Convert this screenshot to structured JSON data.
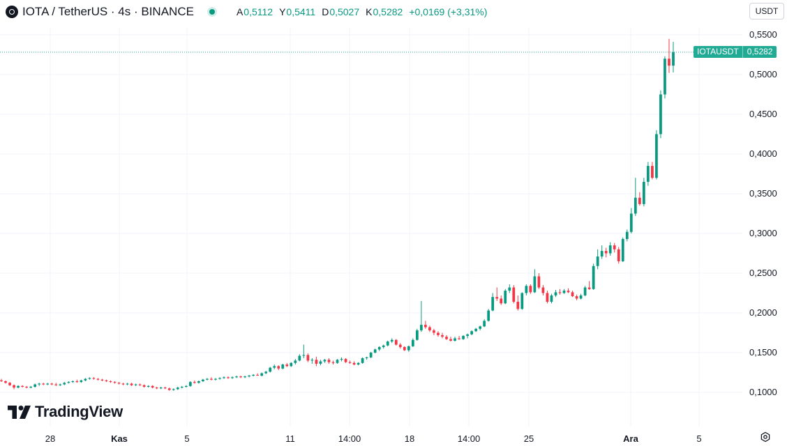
{
  "header": {
    "title": "IOTA / TetherUS · 4s · BINANCE",
    "ohlc": [
      {
        "key": "A",
        "value": "0,5112"
      },
      {
        "key": "Y",
        "value": "0,5411"
      },
      {
        "key": "D",
        "value": "0,5027"
      },
      {
        "key": "K",
        "value": "0,5282"
      }
    ],
    "change": "+0,0169 (+3,31%)"
  },
  "currency_button": "USDT",
  "price_tag": {
    "symbol": "IOTAUSDT",
    "value": "0,5282"
  },
  "logo_text": "TradingView",
  "colors": {
    "up": "#089981",
    "down": "#f23645",
    "grid": "#f0f3fa",
    "last_price": "#22ab94"
  },
  "chart_data": {
    "type": "candlestick",
    "title": "IOTA / TetherUS · 4s · BINANCE",
    "y_ticks": [
      0.1,
      0.15,
      0.2,
      0.25,
      0.3,
      0.35,
      0.4,
      0.45,
      0.5,
      0.55
    ],
    "y_tick_labels": [
      "0,1000",
      "0,1500",
      "0,2000",
      "0,2500",
      "0,3000",
      "0,3500",
      "0,4000",
      "0,4500",
      "0,5000",
      "0,5500"
    ],
    "x_tick_labels": [
      "28",
      "Kas",
      "5",
      "11",
      "14:00",
      "18",
      "14:00",
      "25",
      "Ara",
      "5"
    ],
    "bold_x_ticks": [
      "Kas",
      "Ara"
    ],
    "last_price": 0.5282,
    "ohlc": [
      [
        0.115,
        0.117,
        0.113,
        0.114
      ],
      [
        0.114,
        0.115,
        0.111,
        0.112
      ],
      [
        0.112,
        0.113,
        0.108,
        0.109
      ],
      [
        0.109,
        0.11,
        0.104,
        0.106
      ],
      [
        0.106,
        0.109,
        0.105,
        0.108
      ],
      [
        0.108,
        0.109,
        0.106,
        0.107
      ],
      [
        0.107,
        0.108,
        0.105,
        0.106
      ],
      [
        0.106,
        0.108,
        0.105,
        0.107
      ],
      [
        0.107,
        0.111,
        0.106,
        0.11
      ],
      [
        0.11,
        0.112,
        0.108,
        0.111
      ],
      [
        0.111,
        0.112,
        0.109,
        0.11
      ],
      [
        0.11,
        0.112,
        0.109,
        0.111
      ],
      [
        0.111,
        0.112,
        0.109,
        0.11
      ],
      [
        0.11,
        0.112,
        0.108,
        0.109
      ],
      [
        0.109,
        0.111,
        0.108,
        0.11
      ],
      [
        0.11,
        0.113,
        0.109,
        0.112
      ],
      [
        0.112,
        0.114,
        0.111,
        0.113
      ],
      [
        0.113,
        0.115,
        0.112,
        0.114
      ],
      [
        0.114,
        0.116,
        0.112,
        0.113
      ],
      [
        0.113,
        0.116,
        0.112,
        0.115
      ],
      [
        0.115,
        0.118,
        0.114,
        0.117
      ],
      [
        0.117,
        0.119,
        0.116,
        0.118
      ],
      [
        0.118,
        0.119,
        0.116,
        0.117
      ],
      [
        0.117,
        0.118,
        0.115,
        0.116
      ],
      [
        0.116,
        0.117,
        0.114,
        0.115
      ],
      [
        0.115,
        0.116,
        0.113,
        0.114
      ],
      [
        0.114,
        0.115,
        0.112,
        0.113
      ],
      [
        0.113,
        0.114,
        0.111,
        0.112
      ],
      [
        0.112,
        0.113,
        0.11,
        0.111
      ],
      [
        0.111,
        0.112,
        0.109,
        0.11
      ],
      [
        0.11,
        0.112,
        0.109,
        0.111
      ],
      [
        0.111,
        0.112,
        0.108,
        0.109
      ],
      [
        0.109,
        0.111,
        0.108,
        0.11
      ],
      [
        0.11,
        0.111,
        0.108,
        0.109
      ],
      [
        0.109,
        0.11,
        0.106,
        0.107
      ],
      [
        0.107,
        0.109,
        0.106,
        0.108
      ],
      [
        0.108,
        0.109,
        0.105,
        0.106
      ],
      [
        0.106,
        0.107,
        0.104,
        0.105
      ],
      [
        0.105,
        0.107,
        0.104,
        0.106
      ],
      [
        0.106,
        0.107,
        0.104,
        0.105
      ],
      [
        0.105,
        0.106,
        0.102,
        0.103
      ],
      [
        0.103,
        0.105,
        0.102,
        0.104
      ],
      [
        0.104,
        0.107,
        0.103,
        0.106
      ],
      [
        0.106,
        0.108,
        0.105,
        0.107
      ],
      [
        0.107,
        0.109,
        0.106,
        0.108
      ],
      [
        0.108,
        0.114,
        0.107,
        0.113
      ],
      [
        0.113,
        0.115,
        0.111,
        0.112
      ],
      [
        0.112,
        0.115,
        0.111,
        0.114
      ],
      [
        0.114,
        0.117,
        0.113,
        0.116
      ],
      [
        0.116,
        0.118,
        0.115,
        0.117
      ],
      [
        0.117,
        0.119,
        0.115,
        0.116
      ],
      [
        0.116,
        0.118,
        0.115,
        0.117
      ],
      [
        0.117,
        0.119,
        0.116,
        0.118
      ],
      [
        0.118,
        0.12,
        0.117,
        0.119
      ],
      [
        0.119,
        0.12,
        0.117,
        0.118
      ],
      [
        0.118,
        0.12,
        0.117,
        0.119
      ],
      [
        0.119,
        0.121,
        0.118,
        0.12
      ],
      [
        0.12,
        0.121,
        0.118,
        0.119
      ],
      [
        0.119,
        0.121,
        0.118,
        0.12
      ],
      [
        0.12,
        0.122,
        0.119,
        0.121
      ],
      [
        0.121,
        0.123,
        0.12,
        0.122
      ],
      [
        0.122,
        0.124,
        0.121,
        0.121
      ],
      [
        0.121,
        0.125,
        0.12,
        0.124
      ],
      [
        0.124,
        0.127,
        0.123,
        0.126
      ],
      [
        0.126,
        0.132,
        0.125,
        0.131
      ],
      [
        0.131,
        0.135,
        0.129,
        0.133
      ],
      [
        0.133,
        0.134,
        0.128,
        0.13
      ],
      [
        0.13,
        0.136,
        0.129,
        0.135
      ],
      [
        0.135,
        0.137,
        0.132,
        0.133
      ],
      [
        0.133,
        0.138,
        0.132,
        0.137
      ],
      [
        0.137,
        0.142,
        0.135,
        0.14
      ],
      [
        0.14,
        0.148,
        0.139,
        0.146
      ],
      [
        0.146,
        0.16,
        0.143,
        0.147
      ],
      [
        0.147,
        0.149,
        0.138,
        0.14
      ],
      [
        0.14,
        0.143,
        0.136,
        0.141
      ],
      [
        0.141,
        0.145,
        0.133,
        0.136
      ],
      [
        0.136,
        0.141,
        0.134,
        0.139
      ],
      [
        0.139,
        0.142,
        0.137,
        0.141
      ],
      [
        0.141,
        0.143,
        0.136,
        0.138
      ],
      [
        0.138,
        0.14,
        0.135,
        0.137
      ],
      [
        0.137,
        0.142,
        0.136,
        0.141
      ],
      [
        0.141,
        0.144,
        0.139,
        0.142
      ],
      [
        0.142,
        0.143,
        0.137,
        0.138
      ],
      [
        0.138,
        0.14,
        0.136,
        0.137
      ],
      [
        0.137,
        0.139,
        0.134,
        0.135
      ],
      [
        0.135,
        0.138,
        0.134,
        0.137
      ],
      [
        0.137,
        0.144,
        0.136,
        0.143
      ],
      [
        0.143,
        0.145,
        0.141,
        0.144
      ],
      [
        0.144,
        0.151,
        0.143,
        0.15
      ],
      [
        0.15,
        0.155,
        0.149,
        0.154
      ],
      [
        0.154,
        0.158,
        0.152,
        0.157
      ],
      [
        0.157,
        0.16,
        0.155,
        0.159
      ],
      [
        0.159,
        0.165,
        0.158,
        0.164
      ],
      [
        0.164,
        0.168,
        0.162,
        0.166
      ],
      [
        0.166,
        0.167,
        0.159,
        0.16
      ],
      [
        0.16,
        0.162,
        0.155,
        0.157
      ],
      [
        0.157,
        0.158,
        0.152,
        0.153
      ],
      [
        0.153,
        0.159,
        0.151,
        0.158
      ],
      [
        0.158,
        0.168,
        0.157,
        0.166
      ],
      [
        0.166,
        0.18,
        0.165,
        0.178
      ],
      [
        0.178,
        0.215,
        0.176,
        0.185
      ],
      [
        0.185,
        0.19,
        0.18,
        0.182
      ],
      [
        0.182,
        0.184,
        0.176,
        0.178
      ],
      [
        0.178,
        0.18,
        0.172,
        0.175
      ],
      [
        0.175,
        0.177,
        0.17,
        0.172
      ],
      [
        0.172,
        0.175,
        0.168,
        0.17
      ],
      [
        0.17,
        0.172,
        0.166,
        0.167
      ],
      [
        0.167,
        0.17,
        0.164,
        0.165
      ],
      [
        0.165,
        0.17,
        0.164,
        0.168
      ],
      [
        0.168,
        0.171,
        0.166,
        0.167
      ],
      [
        0.167,
        0.172,
        0.166,
        0.171
      ],
      [
        0.171,
        0.174,
        0.168,
        0.173
      ],
      [
        0.173,
        0.178,
        0.172,
        0.177
      ],
      [
        0.177,
        0.181,
        0.176,
        0.18
      ],
      [
        0.18,
        0.184,
        0.178,
        0.183
      ],
      [
        0.183,
        0.192,
        0.182,
        0.19
      ],
      [
        0.19,
        0.205,
        0.189,
        0.203
      ],
      [
        0.203,
        0.225,
        0.202,
        0.22
      ],
      [
        0.22,
        0.232,
        0.215,
        0.218
      ],
      [
        0.218,
        0.222,
        0.21,
        0.212
      ],
      [
        0.212,
        0.23,
        0.211,
        0.228
      ],
      [
        0.228,
        0.236,
        0.225,
        0.232
      ],
      [
        0.232,
        0.235,
        0.212,
        0.214
      ],
      [
        0.214,
        0.222,
        0.203,
        0.205
      ],
      [
        0.205,
        0.226,
        0.204,
        0.225
      ],
      [
        0.225,
        0.236,
        0.222,
        0.234
      ],
      [
        0.234,
        0.236,
        0.224,
        0.226
      ],
      [
        0.226,
        0.255,
        0.225,
        0.246
      ],
      [
        0.246,
        0.25,
        0.23,
        0.232
      ],
      [
        0.232,
        0.235,
        0.222,
        0.225
      ],
      [
        0.225,
        0.228,
        0.212,
        0.214
      ],
      [
        0.214,
        0.224,
        0.212,
        0.222
      ],
      [
        0.222,
        0.229,
        0.22,
        0.226
      ],
      [
        0.226,
        0.23,
        0.223,
        0.225
      ],
      [
        0.225,
        0.23,
        0.224,
        0.228
      ],
      [
        0.228,
        0.231,
        0.225,
        0.226
      ],
      [
        0.226,
        0.228,
        0.22,
        0.221
      ],
      [
        0.221,
        0.223,
        0.216,
        0.218
      ],
      [
        0.218,
        0.224,
        0.217,
        0.222
      ],
      [
        0.222,
        0.234,
        0.221,
        0.232
      ],
      [
        0.232,
        0.24,
        0.229,
        0.23
      ],
      [
        0.23,
        0.262,
        0.229,
        0.259
      ],
      [
        0.259,
        0.28,
        0.255,
        0.271
      ],
      [
        0.271,
        0.285,
        0.268,
        0.278
      ],
      [
        0.278,
        0.282,
        0.27,
        0.275
      ],
      [
        0.275,
        0.289,
        0.272,
        0.285
      ],
      [
        0.285,
        0.288,
        0.276,
        0.28
      ],
      [
        0.28,
        0.283,
        0.262,
        0.265
      ],
      [
        0.265,
        0.295,
        0.264,
        0.293
      ],
      [
        0.293,
        0.305,
        0.29,
        0.302
      ],
      [
        0.302,
        0.332,
        0.3,
        0.325
      ],
      [
        0.325,
        0.37,
        0.322,
        0.345
      ],
      [
        0.345,
        0.352,
        0.335,
        0.337
      ],
      [
        0.337,
        0.37,
        0.334,
        0.365
      ],
      [
        0.365,
        0.39,
        0.36,
        0.385
      ],
      [
        0.385,
        0.39,
        0.368,
        0.37
      ],
      [
        0.37,
        0.43,
        0.368,
        0.425
      ],
      [
        0.425,
        0.48,
        0.42,
        0.475
      ],
      [
        0.475,
        0.523,
        0.47,
        0.52
      ],
      [
        0.52,
        0.545,
        0.502,
        0.5112
      ],
      [
        0.5112,
        0.5411,
        0.5027,
        0.5282
      ]
    ]
  }
}
